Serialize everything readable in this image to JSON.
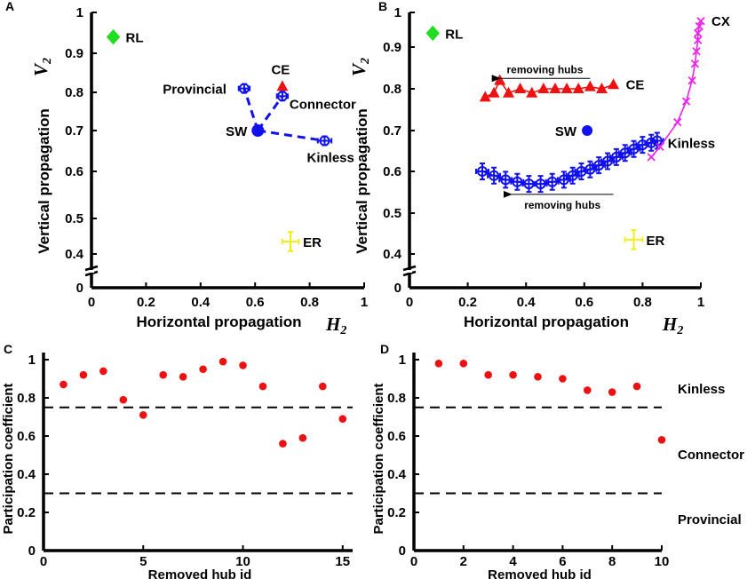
{
  "chart_data": [
    {
      "panel": "A",
      "type": "scatter",
      "xlabel": "Horizontal propagation",
      "x_symbol": "H",
      "ylabel": "Vertical propagation",
      "y_symbol": "V",
      "symbol_subscript": "2",
      "xlim": [
        0,
        1
      ],
      "ylim": [
        0,
        1
      ],
      "xticks": [
        "0",
        "0.2",
        "0.4",
        "0.6",
        "0.8",
        "1"
      ],
      "yticks": [
        "0",
        "0.4",
        "0.5",
        "0.6",
        "0.7",
        "0.8",
        "0.9",
        "1"
      ],
      "axis_break": true,
      "points": [
        {
          "label": "RL",
          "x": 0.08,
          "y": 0.94,
          "marker": "diamond",
          "color": "#22dd22"
        },
        {
          "label": "Provincial",
          "x": 0.56,
          "y": 0.81,
          "marker": "circle-open",
          "color": "#1111ee",
          "xerr": 0.02,
          "yerr": 0.01
        },
        {
          "label": "CE",
          "x": 0.7,
          "y": 0.815,
          "marker": "triangle",
          "color": "#ee1111"
        },
        {
          "label": "Connector",
          "x": 0.7,
          "y": 0.79,
          "marker": "circle-open",
          "color": "#1111ee",
          "xerr": 0.02,
          "yerr": 0.01
        },
        {
          "label": "SW",
          "x": 0.61,
          "y": 0.7,
          "marker": "circle",
          "color": "#1111ee"
        },
        {
          "label": "Kinless",
          "x": 0.855,
          "y": 0.675,
          "marker": "circle-open",
          "color": "#1111ee",
          "xerr": 0.025,
          "yerr": 0.01
        },
        {
          "label": "ER",
          "x": 0.73,
          "y": 0.435,
          "marker": "cross",
          "color": "#eeee22",
          "xerr": 0.03,
          "yerr": 0.025
        }
      ],
      "links": [
        [
          "SW",
          "Provincial"
        ],
        [
          "SW",
          "Connector"
        ],
        [
          "SW",
          "Kinless"
        ]
      ]
    },
    {
      "panel": "B",
      "type": "scatter",
      "xlabel": "Horizontal propagation",
      "x_symbol": "H",
      "ylabel": "Vertical propagation",
      "y_symbol": "V",
      "symbol_subscript": "2",
      "xlim": [
        0,
        1
      ],
      "ylim": [
        0,
        1
      ],
      "xticks": [
        "0",
        "0.2",
        "0.4",
        "0.6",
        "0.8",
        "1"
      ],
      "yticks": [
        "0",
        "0.4",
        "0.5",
        "0.6",
        "0.7",
        "0.8",
        "0.9",
        "1"
      ],
      "axis_break": true,
      "points": [
        {
          "label": "RL",
          "x": 0.08,
          "y": 0.94,
          "marker": "diamond",
          "color": "#22dd22"
        },
        {
          "label": "SW",
          "x": 0.61,
          "y": 0.7,
          "marker": "circle",
          "color": "#1111ee"
        },
        {
          "label": "ER",
          "x": 0.77,
          "y": 0.435,
          "marker": "cross",
          "color": "#eeee22",
          "xerr": 0.03,
          "yerr": 0.025
        }
      ],
      "series": [
        {
          "name": "CE",
          "color": "#ee1111",
          "marker": "triangle",
          "x": [
            0.26,
            0.29,
            0.31,
            0.34,
            0.38,
            0.42,
            0.46,
            0.5,
            0.54,
            0.58,
            0.62,
            0.66,
            0.7
          ],
          "y": [
            0.78,
            0.79,
            0.82,
            0.79,
            0.8,
            0.79,
            0.8,
            0.8,
            0.8,
            0.8,
            0.805,
            0.8,
            0.81
          ],
          "end_label": "CE"
        },
        {
          "name": "Kinless",
          "color": "#1111ee",
          "marker": "circle-open",
          "err": true,
          "x": [
            0.25,
            0.29,
            0.33,
            0.37,
            0.41,
            0.45,
            0.49,
            0.53,
            0.56,
            0.59,
            0.62,
            0.65,
            0.68,
            0.71,
            0.74,
            0.77,
            0.8,
            0.83,
            0.85
          ],
          "y": [
            0.6,
            0.59,
            0.58,
            0.575,
            0.57,
            0.57,
            0.575,
            0.58,
            0.59,
            0.6,
            0.605,
            0.615,
            0.625,
            0.635,
            0.645,
            0.655,
            0.665,
            0.67,
            0.675
          ],
          "end_label": "Kinless"
        },
        {
          "name": "CX",
          "color": "#ee22ee",
          "marker": "x",
          "x": [
            0.83,
            0.86,
            0.92,
            0.95,
            0.97,
            0.98,
            0.985,
            0.99,
            0.99,
            0.995,
            1.0
          ],
          "y": [
            0.635,
            0.66,
            0.72,
            0.77,
            0.82,
            0.86,
            0.89,
            0.92,
            0.94,
            0.96,
            0.975
          ],
          "end_label": "CX"
        }
      ],
      "annotations": [
        {
          "text": "removing hubs",
          "x_from": 0.62,
          "x_to": 0.31,
          "y": 0.825
        },
        {
          "text": "removing hubs",
          "x_from": 0.7,
          "x_to": 0.35,
          "y": 0.545
        }
      ]
    },
    {
      "panel": "C",
      "type": "scatter",
      "xlabel": "Removed hub id",
      "ylabel": "Participation coefficient",
      "xlim": [
        0,
        15.5
      ],
      "ylim": [
        0,
        1
      ],
      "xticks": [
        "0",
        "5",
        "10",
        "15"
      ],
      "yticks": [
        "0",
        "0.2",
        "0.4",
        "0.6",
        "0.8",
        "1"
      ],
      "thresholds": [
        0.75,
        0.3
      ],
      "color": "#ee1111",
      "x": [
        1,
        2,
        3,
        4,
        5,
        6,
        7,
        8,
        9,
        10,
        11,
        12,
        13,
        14,
        15
      ],
      "y": [
        0.87,
        0.92,
        0.94,
        0.79,
        0.71,
        0.92,
        0.91,
        0.95,
        0.99,
        0.97,
        0.86,
        0.56,
        0.59,
        0.86,
        0.69
      ]
    },
    {
      "panel": "D",
      "type": "scatter",
      "xlabel": "Removed hub id",
      "ylabel": "Participation coefficient",
      "xlim": [
        0,
        10
      ],
      "ylim": [
        0,
        1
      ],
      "xticks": [
        "0",
        "2",
        "4",
        "6",
        "8",
        "10"
      ],
      "yticks": [
        "0",
        "0.2",
        "0.4",
        "0.6",
        "0.8",
        "1"
      ],
      "thresholds": [
        0.75,
        0.3
      ],
      "color": "#ee1111",
      "x": [
        1,
        2,
        3,
        4,
        5,
        6,
        7,
        8,
        9,
        10
      ],
      "y": [
        0.98,
        0.98,
        0.92,
        0.92,
        0.91,
        0.9,
        0.84,
        0.83,
        0.86,
        0.58
      ],
      "region_labels": [
        "Kinless",
        "Connector",
        "Provincial"
      ]
    }
  ]
}
